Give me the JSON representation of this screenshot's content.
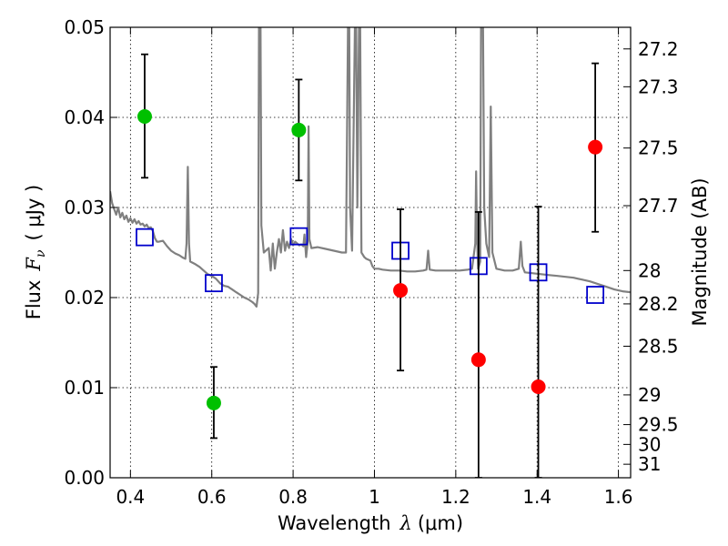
{
  "chart_data": {
    "type": "scatter",
    "xlabel": {
      "prefix": "Wavelength",
      "symbol": "λ",
      "unit": "(μm)"
    },
    "ylabel": {
      "prefix": "Flux",
      "symbol": "F",
      "subscript": "ν",
      "unit": "( μJy )"
    },
    "y2label": "Magnitude (AB)",
    "xlim": [
      0.35,
      1.63
    ],
    "ylim": [
      0.0,
      0.05
    ],
    "grid": true,
    "x_ticks": [
      0.4,
      0.6,
      0.8,
      1.0,
      1.2,
      1.4,
      1.6
    ],
    "x_tick_labels": [
      "0.4",
      "0.6",
      "0.8",
      "1",
      "1.2",
      "1.4",
      "1.6"
    ],
    "y_ticks": [
      0.0,
      0.01,
      0.02,
      0.03,
      0.04,
      0.05
    ],
    "y_tick_labels": [
      "0.00",
      "0.01",
      "0.02",
      "0.03",
      "0.04",
      "0.05"
    ],
    "y2_ticks": [
      {
        "flux": 0.0476,
        "label": "27.2"
      },
      {
        "flux": 0.0434,
        "label": "27.3"
      },
      {
        "flux": 0.0366,
        "label": "27.5"
      },
      {
        "flux": 0.0302,
        "label": "27.7"
      },
      {
        "flux": 0.023,
        "label": "28"
      },
      {
        "flux": 0.0193,
        "label": "28.2"
      },
      {
        "flux": 0.0146,
        "label": "28.5"
      },
      {
        "flux": 0.0092,
        "label": "29"
      },
      {
        "flux": 0.0059,
        "label": "29.5"
      },
      {
        "flux": 0.0037,
        "label": "30"
      },
      {
        "flux": 0.0015,
        "label": "31"
      }
    ],
    "series": [
      {
        "kind": "errorbar-circle",
        "color": "#00c000",
        "points": [
          {
            "x": 0.435,
            "y": 0.0401,
            "err_low": 0.0068,
            "err_high": 0.0069
          },
          {
            "x": 0.605,
            "y": 0.0083,
            "err_low": 0.0039,
            "err_high": 0.004
          },
          {
            "x": 0.814,
            "y": 0.0386,
            "err_low": 0.0056,
            "err_high": 0.0056
          }
        ]
      },
      {
        "kind": "errorbar-circle",
        "color": "#ff0000",
        "points": [
          {
            "x": 1.064,
            "y": 0.0208,
            "err_low": 0.0089,
            "err_high": 0.009
          },
          {
            "x": 1.256,
            "y": 0.0131,
            "err_low": 0.0131,
            "err_high": 0.0164
          },
          {
            "x": 1.403,
            "y": 0.0101,
            "err_low": 0.0101,
            "err_high": 0.02
          },
          {
            "x": 1.543,
            "y": 0.0367,
            "err_low": 0.0094,
            "err_high": 0.0093
          }
        ]
      },
      {
        "kind": "square",
        "color": "#0000cc",
        "points": [
          {
            "x": 0.435,
            "y": 0.0267
          },
          {
            "x": 0.605,
            "y": 0.0216
          },
          {
            "x": 0.814,
            "y": 0.0268
          },
          {
            "x": 1.064,
            "y": 0.0252
          },
          {
            "x": 1.256,
            "y": 0.0235
          },
          {
            "x": 1.403,
            "y": 0.0228
          },
          {
            "x": 1.543,
            "y": 0.0203
          }
        ]
      },
      {
        "kind": "spectrum",
        "color": "#808080",
        "points": [
          [
            0.35,
            0.0318
          ],
          [
            0.355,
            0.0305
          ],
          [
            0.36,
            0.0298
          ],
          [
            0.365,
            0.0292
          ],
          [
            0.37,
            0.03
          ],
          [
            0.375,
            0.0289
          ],
          [
            0.38,
            0.0294
          ],
          [
            0.385,
            0.0287
          ],
          [
            0.39,
            0.0291
          ],
          [
            0.395,
            0.0284
          ],
          [
            0.4,
            0.0288
          ],
          [
            0.405,
            0.0283
          ],
          [
            0.41,
            0.0287
          ],
          [
            0.415,
            0.0282
          ],
          [
            0.42,
            0.0285
          ],
          [
            0.425,
            0.0281
          ],
          [
            0.43,
            0.0282
          ],
          [
            0.435,
            0.0279
          ],
          [
            0.44,
            0.0281
          ],
          [
            0.445,
            0.0277
          ],
          [
            0.45,
            0.0278
          ],
          [
            0.455,
            0.0274
          ],
          [
            0.46,
            0.0266
          ],
          [
            0.465,
            0.0262
          ],
          [
            0.47,
            0.0262
          ],
          [
            0.48,
            0.0263
          ],
          [
            0.49,
            0.0257
          ],
          [
            0.5,
            0.0252
          ],
          [
            0.51,
            0.0249
          ],
          [
            0.52,
            0.0247
          ],
          [
            0.53,
            0.0244
          ],
          [
            0.535,
            0.0243
          ],
          [
            0.538,
            0.026
          ],
          [
            0.541,
            0.0345
          ],
          [
            0.544,
            0.026
          ],
          [
            0.547,
            0.024
          ],
          [
            0.56,
            0.0237
          ],
          [
            0.57,
            0.0234
          ],
          [
            0.58,
            0.023
          ],
          [
            0.59,
            0.0226
          ],
          [
            0.6,
            0.0224
          ],
          [
            0.61,
            0.0221
          ],
          [
            0.62,
            0.0216
          ],
          [
            0.63,
            0.0213
          ],
          [
            0.64,
            0.0212
          ],
          [
            0.65,
            0.0209
          ],
          [
            0.66,
            0.0206
          ],
          [
            0.67,
            0.0203
          ],
          [
            0.68,
            0.02
          ],
          [
            0.69,
            0.0198
          ],
          [
            0.7,
            0.0195
          ],
          [
            0.705,
            0.0193
          ],
          [
            0.71,
            0.019
          ],
          [
            0.714,
            0.0205
          ],
          [
            0.716,
            0.05
          ],
          [
            0.72,
            0.05
          ],
          [
            0.722,
            0.028
          ],
          [
            0.728,
            0.025
          ],
          [
            0.74,
            0.0255
          ],
          [
            0.745,
            0.023
          ],
          [
            0.75,
            0.026
          ],
          [
            0.755,
            0.0232
          ],
          [
            0.76,
            0.025
          ],
          [
            0.765,
            0.0265
          ],
          [
            0.77,
            0.025
          ],
          [
            0.775,
            0.0275
          ],
          [
            0.78,
            0.0252
          ],
          [
            0.785,
            0.0262
          ],
          [
            0.79,
            0.0255
          ],
          [
            0.795,
            0.0265
          ],
          [
            0.8,
            0.0258
          ],
          [
            0.805,
            0.0262
          ],
          [
            0.81,
            0.026
          ],
          [
            0.815,
            0.0258
          ],
          [
            0.82,
            0.0259
          ],
          [
            0.825,
            0.0257
          ],
          [
            0.828,
            0.027
          ],
          [
            0.832,
            0.0245
          ],
          [
            0.836,
            0.0262
          ],
          [
            0.838,
            0.039
          ],
          [
            0.84,
            0.0265
          ],
          [
            0.845,
            0.0255
          ],
          [
            0.86,
            0.0256
          ],
          [
            0.88,
            0.0254
          ],
          [
            0.9,
            0.0252
          ],
          [
            0.92,
            0.025
          ],
          [
            0.93,
            0.025
          ],
          [
            0.935,
            0.05
          ],
          [
            0.938,
            0.05
          ],
          [
            0.94,
            0.03
          ],
          [
            0.945,
            0.0252
          ],
          [
            0.952,
            0.05
          ],
          [
            0.955,
            0.05
          ],
          [
            0.958,
            0.03
          ],
          [
            0.962,
            0.05
          ],
          [
            0.965,
            0.05
          ],
          [
            0.968,
            0.025
          ],
          [
            0.975,
            0.0245
          ],
          [
            0.98,
            0.0243
          ],
          [
            0.99,
            0.0241
          ],
          [
            0.995,
            0.0235
          ],
          [
            1.0,
            0.0232
          ],
          [
            1.01,
            0.0232
          ],
          [
            1.02,
            0.0231
          ],
          [
            1.04,
            0.023
          ],
          [
            1.06,
            0.023
          ],
          [
            1.08,
            0.0229
          ],
          [
            1.1,
            0.0229
          ],
          [
            1.12,
            0.023
          ],
          [
            1.128,
            0.0231
          ],
          [
            1.132,
            0.0252
          ],
          [
            1.136,
            0.0231
          ],
          [
            1.15,
            0.023
          ],
          [
            1.17,
            0.023
          ],
          [
            1.19,
            0.023
          ],
          [
            1.21,
            0.023
          ],
          [
            1.23,
            0.0231
          ],
          [
            1.24,
            0.0232
          ],
          [
            1.248,
            0.026
          ],
          [
            1.25,
            0.034
          ],
          [
            1.252,
            0.027
          ],
          [
            1.255,
            0.0232
          ],
          [
            1.26,
            0.024
          ],
          [
            1.262,
            0.05
          ],
          [
            1.267,
            0.05
          ],
          [
            1.27,
            0.03
          ],
          [
            1.275,
            0.026
          ],
          [
            1.282,
            0.0245
          ],
          [
            1.286,
            0.0412
          ],
          [
            1.29,
            0.025
          ],
          [
            1.3,
            0.0232
          ],
          [
            1.32,
            0.023
          ],
          [
            1.34,
            0.023
          ],
          [
            1.355,
            0.0232
          ],
          [
            1.36,
            0.0262
          ],
          [
            1.364,
            0.0235
          ],
          [
            1.37,
            0.0228
          ],
          [
            1.39,
            0.0227
          ],
          [
            1.41,
            0.0226
          ],
          [
            1.43,
            0.0225
          ],
          [
            1.45,
            0.0224
          ],
          [
            1.47,
            0.0223
          ],
          [
            1.49,
            0.0222
          ],
          [
            1.51,
            0.022
          ],
          [
            1.53,
            0.0218
          ],
          [
            1.55,
            0.0215
          ],
          [
            1.57,
            0.0212
          ],
          [
            1.59,
            0.0209
          ],
          [
            1.61,
            0.0207
          ],
          [
            1.63,
            0.0206
          ]
        ]
      }
    ]
  }
}
